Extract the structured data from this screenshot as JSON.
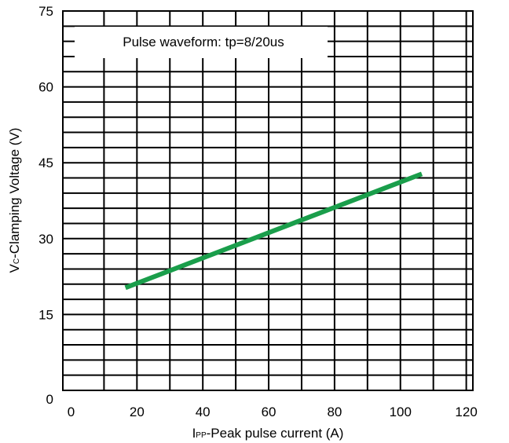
{
  "chart_data": {
    "type": "line",
    "title": "",
    "annotation": "Pulse waveform: tp=8/20us",
    "xlabel": {
      "main": "I",
      "sub": "PP",
      "rest": "-Peak pulse current (A)"
    },
    "ylabel": {
      "main": "V",
      "sub": "C",
      "rest": "-Clamping Voltage (V)"
    },
    "xlim": [
      -2.5,
      122
    ],
    "ylim": [
      0,
      75
    ],
    "x_ticks": [
      0,
      20,
      40,
      60,
      80,
      100,
      120
    ],
    "y_ticks": [
      0,
      15,
      30,
      45,
      60,
      75
    ],
    "grid": true,
    "series": [
      {
        "name": "",
        "color": "#1a9e4b",
        "x": [
          16.5,
          106.5
        ],
        "y": [
          20.3,
          42.8
        ]
      }
    ]
  }
}
